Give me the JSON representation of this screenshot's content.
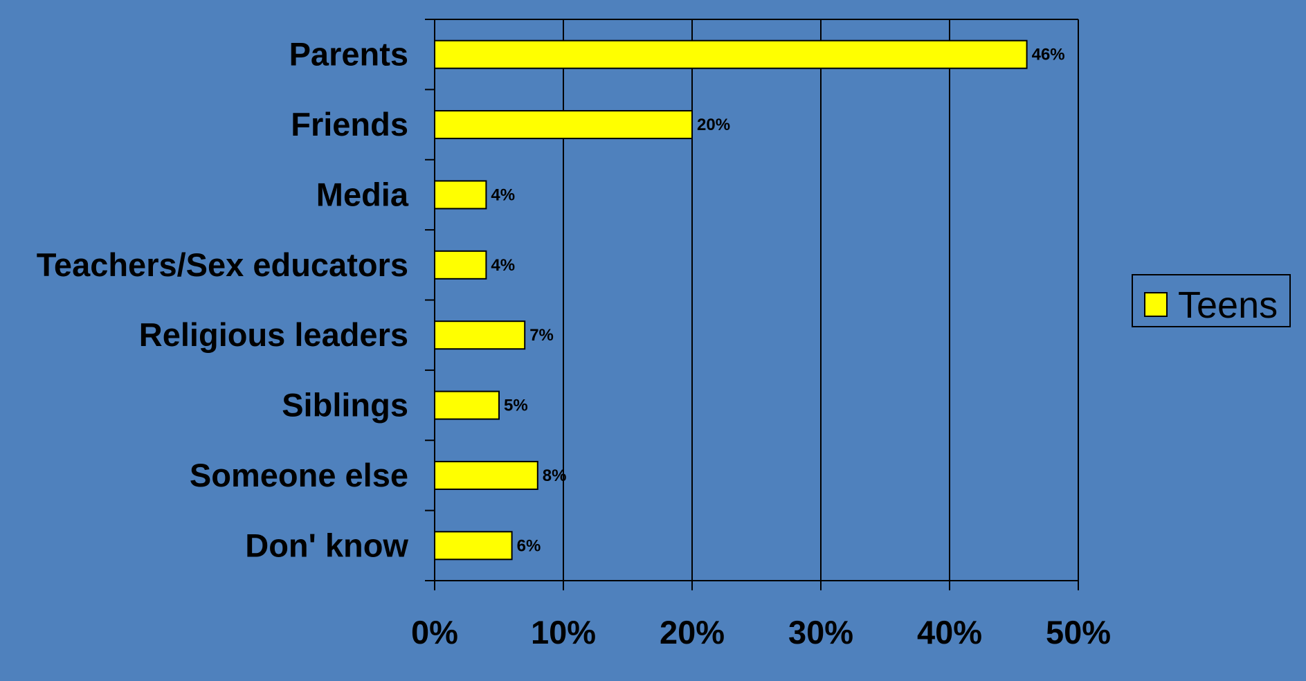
{
  "chart_data": {
    "type": "bar",
    "orientation": "horizontal",
    "categories": [
      "Parents",
      "Friends",
      "Media",
      "Teachers/Sex educators",
      "Religious leaders",
      "Siblings",
      "Someone else",
      "Don' know"
    ],
    "series": [
      {
        "name": "Teens",
        "values": [
          46,
          20,
          4,
          4,
          7,
          5,
          8,
          6
        ],
        "value_labels": [
          "46%",
          "20%",
          "4%",
          "4%",
          "7%",
          "5%",
          "8%",
          "6%"
        ],
        "color": "#ffff00"
      }
    ],
    "xlim": [
      0,
      50
    ],
    "x_ticks": [
      0,
      10,
      20,
      30,
      40,
      50
    ],
    "x_tick_labels": [
      "0%",
      "10%",
      "20%",
      "30%",
      "40%",
      "50%"
    ],
    "title": "",
    "xlabel": "",
    "ylabel": "",
    "grid": "vertical",
    "legend": {
      "position": "right",
      "entries": [
        "Teens"
      ]
    },
    "colors": {
      "background": "#4f81bd",
      "bar_fill": "#ffff00",
      "bar_stroke": "#000000",
      "grid": "#000000",
      "legend_border": "#000000"
    }
  }
}
